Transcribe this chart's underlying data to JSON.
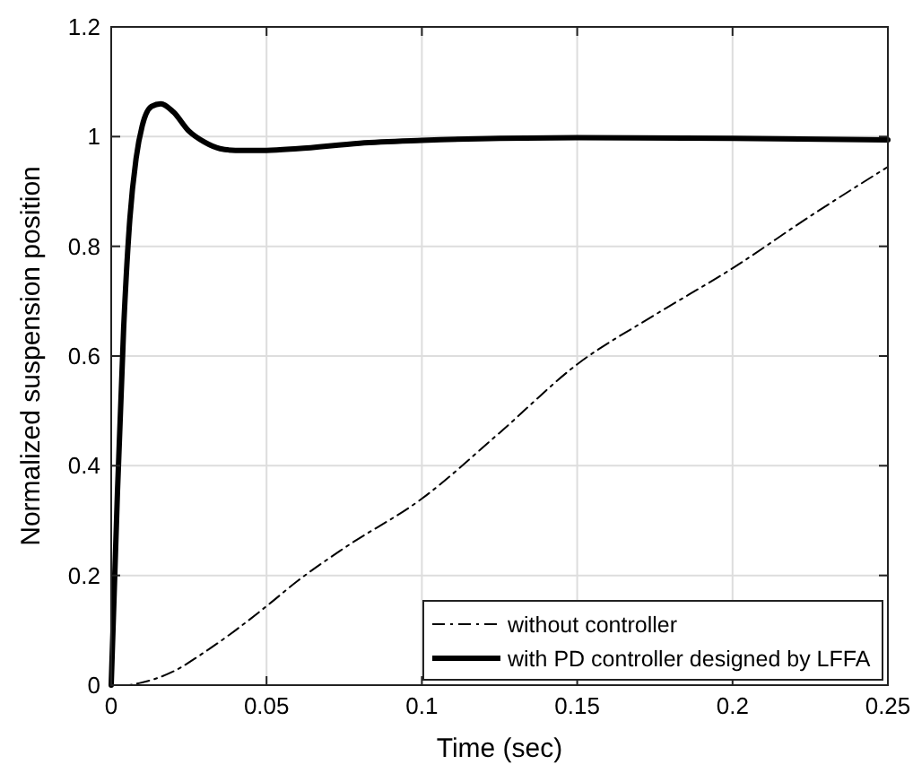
{
  "chart_data": {
    "type": "line",
    "xlabel": "Time (sec)",
    "ylabel": "Normalized suspension position",
    "xlim": [
      0,
      0.25
    ],
    "xticks": [
      0,
      0.05,
      0.1,
      0.15,
      0.2,
      0.25
    ],
    "ylim": [
      0,
      1.2
    ],
    "yticks": [
      0,
      0.2,
      0.4,
      0.6,
      0.8,
      1,
      1.2
    ],
    "grid": true,
    "legend": "bottom right",
    "series": [
      {
        "name": "without controller",
        "color": "#000000",
        "line_style": "dashed",
        "x": [
          0,
          0.005,
          0.01,
          0.02,
          0.03,
          0.04,
          0.05,
          0.06,
          0.075,
          0.1,
          0.125,
          0.15,
          0.175,
          0.2,
          0.225,
          0.25
        ],
        "values": [
          0,
          0,
          0.005,
          0.025,
          0.06,
          0.1,
          0.144,
          0.19,
          0.25,
          0.34,
          0.46,
          0.585,
          0.675,
          0.76,
          0.855,
          0.945
        ]
      },
      {
        "name": "with PD controller designed by LFFA",
        "color": "#000000",
        "line_style": "solid",
        "x": [
          0,
          0.002,
          0.004,
          0.006,
          0.008,
          0.01,
          0.013,
          0.016,
          0.02,
          0.025,
          0.03,
          0.035,
          0.04,
          0.05,
          0.06,
          0.08,
          0.1,
          0.125,
          0.15,
          0.2,
          0.25
        ],
        "values": [
          0,
          0.35,
          0.65,
          0.85,
          0.96,
          1.02,
          1.055,
          1.06,
          1.045,
          1.01,
          0.99,
          0.978,
          0.975,
          0.975,
          0.978,
          0.988,
          0.993,
          0.997,
          0.998,
          0.997,
          0.994
        ]
      }
    ]
  }
}
